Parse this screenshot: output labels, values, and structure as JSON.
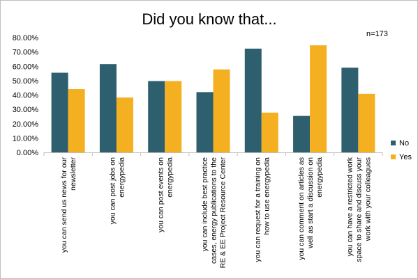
{
  "chart_data": {
    "type": "bar",
    "title": "Did you know that...",
    "note": "n=173",
    "ylim": [
      0,
      80
    ],
    "yticks": [
      0,
      10,
      20,
      30,
      40,
      50,
      60,
      70,
      80
    ],
    "ytick_labels": [
      "0.00%",
      "10.00%",
      "20.00%",
      "30.00%",
      "40.00%",
      "50.00%",
      "60.00%",
      "70.00%",
      "80.00%"
    ],
    "grid": false,
    "legend_position": "right",
    "categories": [
      [
        "you can send us news for our",
        "newsletter"
      ],
      [
        "you can post jobs on",
        "energypedia"
      ],
      [
        "you can post events on",
        "energypedia"
      ],
      [
        "you can include best practice",
        "cases, energy publications to the",
        "RE & EE Project Resource Center"
      ],
      [
        "you can request for a training on",
        "how to use energypedia"
      ],
      [
        "you can comment on articles as",
        "well as start a discussion on",
        "energypedia"
      ],
      [
        "you can have a restricted work",
        "space to share and discuss your",
        "work with your colleagues"
      ]
    ],
    "series": [
      {
        "name": "No",
        "color": "#2e5f6e",
        "values": [
          55.5,
          61.5,
          49.7,
          42.0,
          72.3,
          25.4,
          59.0
        ]
      },
      {
        "name": "Yes",
        "color": "#f5b021",
        "values": [
          44.1,
          38.2,
          49.7,
          57.8,
          27.7,
          74.6,
          40.8
        ]
      }
    ]
  }
}
